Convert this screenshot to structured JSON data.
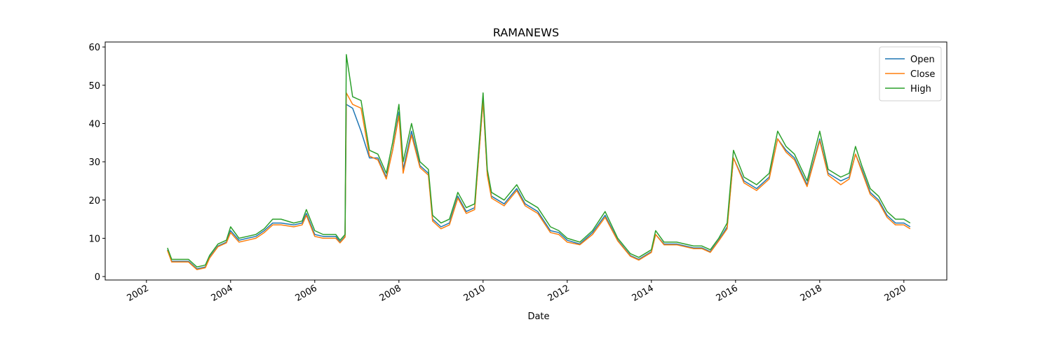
{
  "chart_data": {
    "type": "line",
    "title": "RAMANEWS",
    "x_label": "Date",
    "x": [
      2002.5,
      2002.6,
      2002.8,
      2003.0,
      2003.2,
      2003.4,
      2003.5,
      2003.7,
      2003.9,
      2004.0,
      2004.2,
      2004.4,
      2004.6,
      2004.8,
      2005.0,
      2005.2,
      2005.5,
      2005.7,
      2005.8,
      2006.0,
      2006.2,
      2006.5,
      2006.6,
      2006.72,
      2006.75,
      2006.9,
      2007.1,
      2007.3,
      2007.5,
      2007.7,
      2007.85,
      2008.0,
      2008.1,
      2008.3,
      2008.5,
      2008.7,
      2008.8,
      2009.0,
      2009.2,
      2009.4,
      2009.6,
      2009.8,
      2010.0,
      2010.1,
      2010.2,
      2010.5,
      2010.8,
      2011.0,
      2011.3,
      2011.6,
      2011.8,
      2012.0,
      2012.3,
      2012.6,
      2012.9,
      2013.2,
      2013.5,
      2013.7,
      2014.0,
      2014.1,
      2014.3,
      2014.6,
      2015.0,
      2015.2,
      2015.4,
      2015.6,
      2015.8,
      2015.95,
      2016.2,
      2016.5,
      2016.8,
      2017.0,
      2017.2,
      2017.4,
      2017.7,
      2018.0,
      2018.2,
      2018.5,
      2018.7,
      2018.85,
      2019.0,
      2019.2,
      2019.4,
      2019.6,
      2019.8,
      2020.0,
      2020.15
    ],
    "series": [
      {
        "name": "Open",
        "color": "#1f77b4",
        "values": [
          7,
          4,
          4,
          4,
          2,
          2.5,
          5,
          8,
          9,
          12,
          9.5,
          10,
          10.5,
          12,
          14,
          14,
          13.5,
          14,
          16.5,
          11,
          10.5,
          10.5,
          9,
          10.5,
          45,
          44,
          38,
          31,
          31,
          26,
          33,
          43,
          28,
          38,
          29,
          27,
          15,
          13,
          14,
          21,
          17,
          18,
          46,
          27,
          21,
          19,
          23,
          19,
          17,
          12,
          11.5,
          9.5,
          8.5,
          11.5,
          16,
          9.5,
          5.5,
          4.5,
          6.5,
          11,
          8.5,
          8.5,
          7.5,
          7.5,
          6.5,
          9.5,
          13,
          31,
          25,
          23,
          26,
          36,
          33,
          31,
          24,
          36,
          27,
          25,
          26,
          32,
          28,
          22,
          20,
          16,
          14,
          14,
          13
        ]
      },
      {
        "name": "Close",
        "color": "#ff7f0e",
        "values": [
          6.8,
          3.8,
          3.8,
          3.8,
          1.8,
          2.3,
          4.8,
          7.8,
          8.8,
          11.5,
          9,
          9.5,
          10,
          11.5,
          13.5,
          13.5,
          13,
          13.5,
          16,
          10.5,
          10,
          10,
          8.8,
          10.3,
          48,
          45,
          44,
          31.5,
          30.5,
          25.5,
          33,
          42,
          27,
          37,
          28.5,
          26.5,
          14.5,
          12.5,
          13.5,
          20.5,
          16.5,
          17.5,
          46,
          26.5,
          20.5,
          18.5,
          22.5,
          18.5,
          16.5,
          11.5,
          11,
          9,
          8.3,
          11,
          15.5,
          9.3,
          5.3,
          4.3,
          6.3,
          11,
          8.3,
          8.3,
          7.3,
          7.3,
          6.3,
          9.3,
          12.5,
          31,
          24.5,
          22.5,
          25.5,
          36,
          32.5,
          30.5,
          23.5,
          35.5,
          26.5,
          24,
          25.5,
          32,
          27.5,
          21.5,
          19.5,
          15.5,
          13.5,
          13.5,
          12.5
        ]
      },
      {
        "name": "High",
        "color": "#2ca02c",
        "values": [
          7.5,
          4.5,
          4.5,
          4.5,
          2.5,
          3,
          5.5,
          8.5,
          9.5,
          13,
          10,
          10.5,
          11,
          12.5,
          15,
          15,
          14,
          14.5,
          17.5,
          12,
          11,
          11,
          9.5,
          11,
          58,
          47,
          46,
          33,
          32,
          27,
          35,
          45,
          30,
          40,
          30,
          28,
          16,
          14,
          15,
          22,
          18,
          19,
          48,
          28,
          22,
          20,
          24,
          20,
          18,
          13,
          12,
          10,
          9,
          12,
          17,
          10,
          6,
          5,
          7,
          12,
          9,
          9,
          8,
          8,
          7,
          10,
          14,
          33,
          26,
          24,
          27,
          38,
          34,
          32,
          25,
          38,
          28,
          26,
          27,
          34,
          29,
          23,
          21,
          17,
          15,
          15,
          14
        ]
      }
    ],
    "xlim": [
      2001.02,
      2021.02
    ],
    "xticks": [
      2002,
      2004,
      2006,
      2008,
      2010,
      2012,
      2014,
      2016,
      2018,
      2020
    ],
    "ylim": [
      -0.9,
      61.3
    ],
    "yticks": [
      0,
      10,
      20,
      30,
      40,
      50,
      60
    ],
    "legend": "upper right"
  }
}
